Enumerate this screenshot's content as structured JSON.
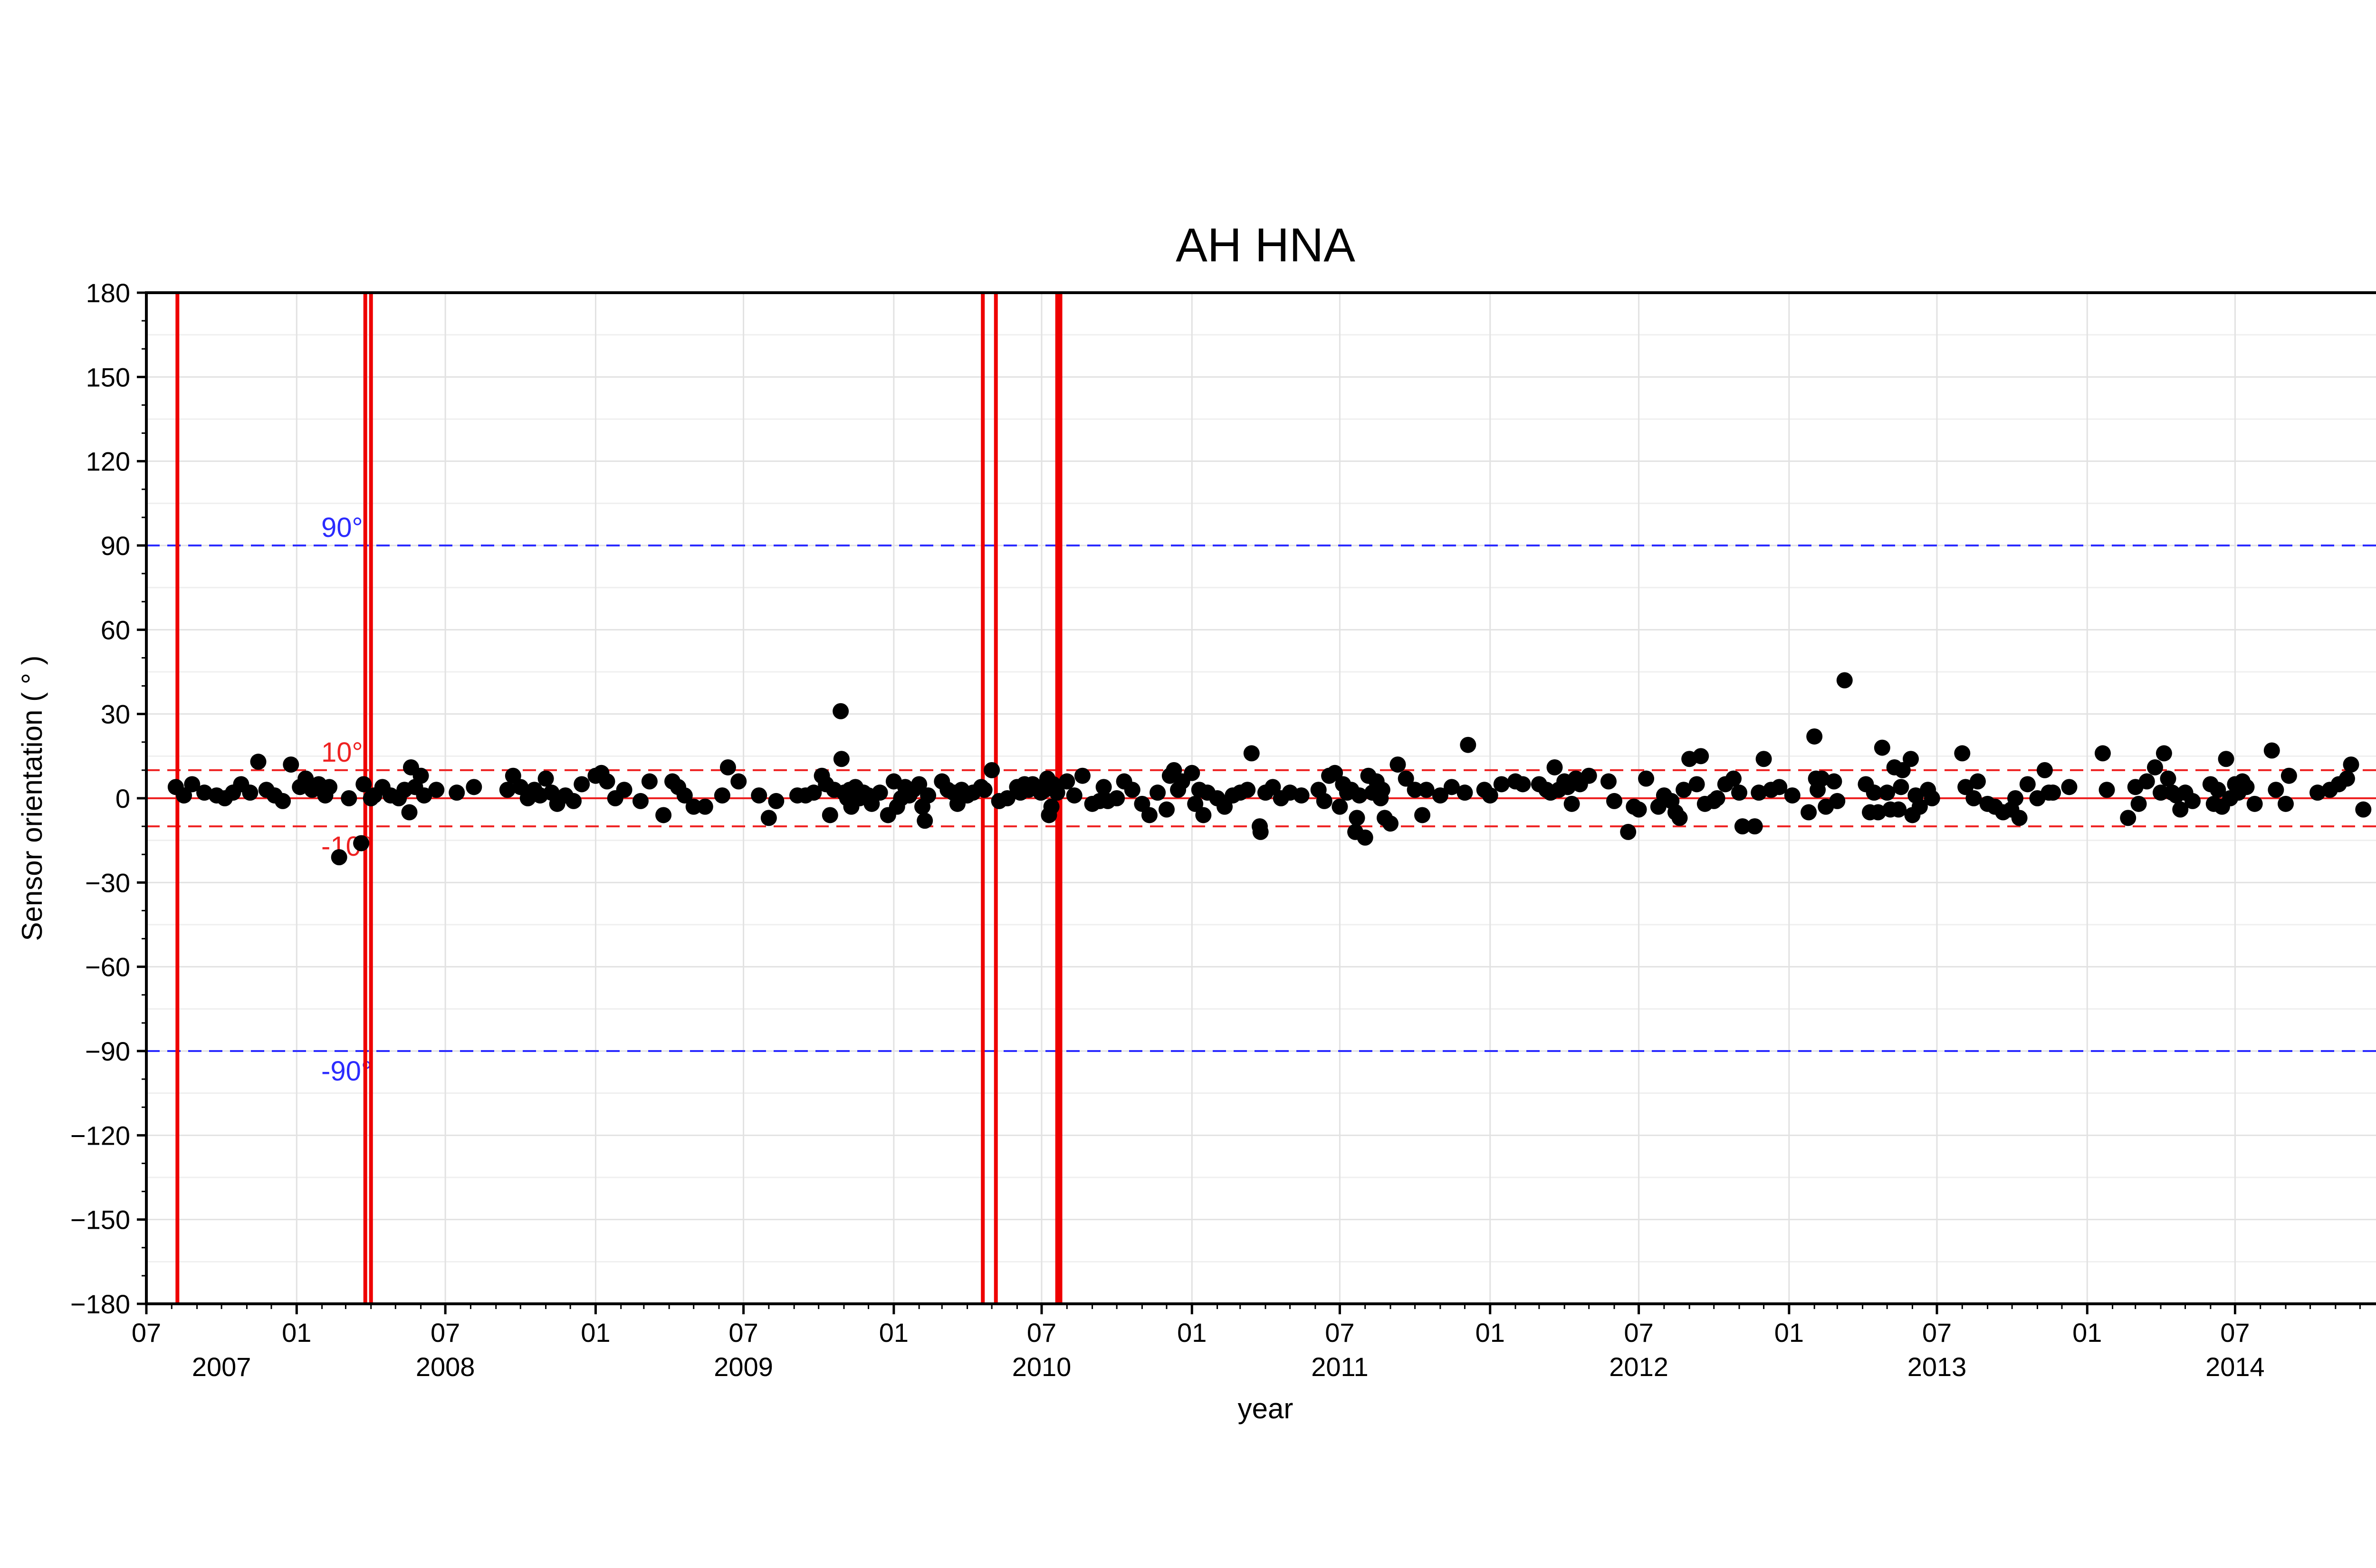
{
  "chart_data": {
    "type": "scatter",
    "title": "AH HNA",
    "xlabel": "year",
    "ylabel": "Sensor orientation ( ° )",
    "ylim": [
      -180,
      180
    ],
    "yticks": [
      180,
      150,
      120,
      90,
      60,
      30,
      0,
      -30,
      -60,
      -90,
      -120,
      -150,
      -180
    ],
    "ytick_labels": [
      "180",
      "150",
      "120",
      "90",
      "60",
      "30",
      "0",
      "−30",
      "−60",
      "−90",
      "−120",
      "−150",
      "−180"
    ],
    "xlim": [
      "2007-07-01",
      "2014-12-31"
    ],
    "xticks": [
      {
        "date": "2007-07-01",
        "label": "07"
      },
      {
        "date": "2008-01-01",
        "label": "01"
      },
      {
        "date": "2008-07-01",
        "label": "07"
      },
      {
        "date": "2009-01-01",
        "label": "01"
      },
      {
        "date": "2009-07-01",
        "label": "07"
      },
      {
        "date": "2010-01-01",
        "label": "01"
      },
      {
        "date": "2010-07-01",
        "label": "07"
      },
      {
        "date": "2011-01-01",
        "label": "01"
      },
      {
        "date": "2011-07-01",
        "label": "07"
      },
      {
        "date": "2012-01-01",
        "label": "01"
      },
      {
        "date": "2012-07-01",
        "label": "07"
      },
      {
        "date": "2013-01-01",
        "label": "01"
      },
      {
        "date": "2013-07-01",
        "label": "07"
      },
      {
        "date": "2014-01-01",
        "label": "01"
      },
      {
        "date": "2014-07-01",
        "label": "07"
      }
    ],
    "year_labels": [
      {
        "date": "2007-10-01",
        "label": "2007"
      },
      {
        "date": "2008-07-01",
        "label": "2008"
      },
      {
        "date": "2009-07-01",
        "label": "2009"
      },
      {
        "date": "2010-07-01",
        "label": "2010"
      },
      {
        "date": "2011-07-01",
        "label": "2011"
      },
      {
        "date": "2012-07-01",
        "label": "2012"
      },
      {
        "date": "2013-07-01",
        "label": "2013"
      },
      {
        "date": "2014-07-01",
        "label": "2014"
      }
    ],
    "grid": true,
    "reference_lines": [
      {
        "y": 90,
        "label": "90°",
        "color": "#2b2bff",
        "style": "dashed"
      },
      {
        "y": -90,
        "label": "-90°",
        "color": "#2b2bff",
        "style": "dashed"
      },
      {
        "y": 10,
        "label": "10°",
        "color": "#ee2222",
        "style": "dashed"
      },
      {
        "y": -10,
        "label": "-10°",
        "color": "#ee2222",
        "style": "dashed"
      },
      {
        "y": 0,
        "label": "",
        "color": "#ee2222",
        "style": "solid"
      }
    ],
    "vertical_lines": {
      "color": "#ee0000",
      "dates": [
        "2007-08-08",
        "2008-03-25",
        "2008-04-01",
        "2010-04-20",
        "2010-05-06",
        "2010-07-20",
        "2010-07-24"
      ]
    },
    "point_color": "#000000",
    "points": [
      [
        "2007-08-06",
        4
      ],
      [
        "2007-08-16",
        1
      ],
      [
        "2007-08-26",
        5
      ],
      [
        "2007-09-10",
        2
      ],
      [
        "2007-09-25",
        1
      ],
      [
        "2007-10-05",
        0
      ],
      [
        "2007-10-15",
        2
      ],
      [
        "2007-10-25",
        5
      ],
      [
        "2007-11-05",
        2
      ],
      [
        "2007-11-15",
        13
      ],
      [
        "2007-11-25",
        3
      ],
      [
        "2007-12-05",
        1
      ],
      [
        "2007-12-15",
        -1
      ],
      [
        "2007-12-25",
        12
      ],
      [
        "2008-01-05",
        4
      ],
      [
        "2008-01-12",
        7
      ],
      [
        "2008-01-20",
        3
      ],
      [
        "2008-01-28",
        5
      ],
      [
        "2008-02-05",
        1
      ],
      [
        "2008-02-10",
        4
      ],
      [
        "2008-02-22",
        -21
      ],
      [
        "2008-03-05",
        0
      ],
      [
        "2008-03-20",
        -16
      ],
      [
        "2008-03-23",
        5
      ],
      [
        "2008-04-01",
        0
      ],
      [
        "2008-04-05",
        1
      ],
      [
        "2008-04-15",
        4
      ],
      [
        "2008-04-25",
        1
      ],
      [
        "2008-05-05",
        0
      ],
      [
        "2008-05-12",
        3
      ],
      [
        "2008-05-18",
        -5
      ],
      [
        "2008-05-20",
        11
      ],
      [
        "2008-05-25",
        4
      ],
      [
        "2008-06-01",
        8
      ],
      [
        "2008-06-05",
        1
      ],
      [
        "2008-06-20",
        3
      ],
      [
        "2008-07-15",
        2
      ],
      [
        "2008-08-05",
        4
      ],
      [
        "2008-09-15",
        3
      ],
      [
        "2008-09-22",
        8
      ],
      [
        "2008-10-01",
        4
      ],
      [
        "2008-10-10",
        0
      ],
      [
        "2008-10-18",
        3
      ],
      [
        "2008-10-25",
        1
      ],
      [
        "2008-11-01",
        7
      ],
      [
        "2008-11-08",
        2
      ],
      [
        "2008-11-15",
        -2
      ],
      [
        "2008-11-25",
        1
      ],
      [
        "2008-12-05",
        -1
      ],
      [
        "2008-12-15",
        5
      ],
      [
        "2009-01-01",
        8
      ],
      [
        "2009-01-08",
        9
      ],
      [
        "2009-01-15",
        6
      ],
      [
        "2009-01-25",
        0
      ],
      [
        "2009-02-05",
        3
      ],
      [
        "2009-02-25",
        -1
      ],
      [
        "2009-03-08",
        6
      ],
      [
        "2009-03-25",
        -6
      ],
      [
        "2009-04-05",
        6
      ],
      [
        "2009-04-12",
        4
      ],
      [
        "2009-04-20",
        1
      ],
      [
        "2009-05-01",
        -3
      ],
      [
        "2009-05-15",
        -3
      ],
      [
        "2009-06-05",
        1
      ],
      [
        "2009-06-12",
        11
      ],
      [
        "2009-06-25",
        6
      ],
      [
        "2009-07-20",
        1
      ],
      [
        "2009-08-01",
        -7
      ],
      [
        "2009-08-10",
        -1
      ],
      [
        "2009-09-05",
        1
      ],
      [
        "2009-09-15",
        1
      ],
      [
        "2009-09-25",
        2
      ],
      [
        "2009-10-05",
        8
      ],
      [
        "2009-10-10",
        5
      ],
      [
        "2009-10-15",
        -6
      ],
      [
        "2009-10-20",
        3
      ],
      [
        "2009-10-28",
        31
      ],
      [
        "2009-10-29",
        14
      ],
      [
        "2009-11-01",
        2
      ],
      [
        "2009-11-05",
        0
      ],
      [
        "2009-11-08",
        3
      ],
      [
        "2009-11-10",
        -3
      ],
      [
        "2009-11-15",
        4
      ],
      [
        "2009-11-20",
        0
      ],
      [
        "2009-11-25",
        2
      ],
      [
        "2009-12-01",
        1
      ],
      [
        "2009-12-05",
        -2
      ],
      [
        "2009-12-15",
        2
      ],
      [
        "2009-12-25",
        -6
      ],
      [
        "2010-01-01",
        6
      ],
      [
        "2010-01-05",
        -3
      ],
      [
        "2010-01-10",
        0
      ],
      [
        "2010-01-15",
        4
      ],
      [
        "2010-01-20",
        1
      ],
      [
        "2010-01-25",
        3
      ],
      [
        "2010-02-01",
        5
      ],
      [
        "2010-02-05",
        -3
      ],
      [
        "2010-02-08",
        -8
      ],
      [
        "2010-02-12",
        1
      ],
      [
        "2010-03-01",
        6
      ],
      [
        "2010-03-08",
        3
      ],
      [
        "2010-03-15",
        2
      ],
      [
        "2010-03-20",
        -2
      ],
      [
        "2010-03-25",
        3
      ],
      [
        "2010-04-01",
        1
      ],
      [
        "2010-04-08",
        2
      ],
      [
        "2010-04-18",
        4
      ],
      [
        "2010-04-22",
        3
      ],
      [
        "2010-05-01",
        10
      ],
      [
        "2010-05-10",
        -1
      ],
      [
        "2010-05-20",
        0
      ],
      [
        "2010-06-01",
        4
      ],
      [
        "2010-06-05",
        2
      ],
      [
        "2010-06-10",
        5
      ],
      [
        "2010-06-15",
        3
      ],
      [
        "2010-06-20",
        5
      ],
      [
        "2010-06-25",
        4
      ],
      [
        "2010-06-30",
        2
      ],
      [
        "2010-07-05",
        3
      ],
      [
        "2010-07-08",
        7
      ],
      [
        "2010-07-10",
        -6
      ],
      [
        "2010-07-13",
        -3
      ],
      [
        "2010-07-15",
        5
      ],
      [
        "2010-07-20",
        2
      ],
      [
        "2010-08-01",
        6
      ],
      [
        "2010-08-10",
        1
      ],
      [
        "2010-08-20",
        8
      ],
      [
        "2010-09-01",
        -2
      ],
      [
        "2010-09-10",
        -1
      ],
      [
        "2010-09-15",
        4
      ],
      [
        "2010-09-20",
        -1
      ],
      [
        "2010-10-01",
        0
      ],
      [
        "2010-10-10",
        6
      ],
      [
        "2010-10-20",
        3
      ],
      [
        "2010-11-01",
        -2
      ],
      [
        "2010-11-10",
        -6
      ],
      [
        "2010-11-20",
        2
      ],
      [
        "2010-12-01",
        -4
      ],
      [
        "2010-12-05",
        8
      ],
      [
        "2010-12-10",
        10
      ],
      [
        "2010-12-15",
        3
      ],
      [
        "2010-12-20",
        6
      ],
      [
        "2011-01-01",
        9
      ],
      [
        "2011-01-05",
        -2
      ],
      [
        "2011-01-10",
        3
      ],
      [
        "2011-01-15",
        -6
      ],
      [
        "2011-01-20",
        2
      ],
      [
        "2011-02-01",
        0
      ],
      [
        "2011-02-10",
        -3
      ],
      [
        "2011-02-20",
        1
      ],
      [
        "2011-03-01",
        2
      ],
      [
        "2011-03-10",
        3
      ],
      [
        "2011-03-15",
        16
      ],
      [
        "2011-03-25",
        -10
      ],
      [
        "2011-03-26",
        -12
      ],
      [
        "2011-04-01",
        2
      ],
      [
        "2011-04-10",
        4
      ],
      [
        "2011-04-20",
        0
      ],
      [
        "2011-05-01",
        2
      ],
      [
        "2011-05-15",
        1
      ],
      [
        "2011-06-05",
        3
      ],
      [
        "2011-06-12",
        -1
      ],
      [
        "2011-06-18",
        8
      ],
      [
        "2011-06-25",
        9
      ],
      [
        "2011-07-01",
        -3
      ],
      [
        "2011-07-05",
        5
      ],
      [
        "2011-07-10",
        2
      ],
      [
        "2011-07-15",
        3
      ],
      [
        "2011-07-20",
        -12
      ],
      [
        "2011-07-22",
        -7
      ],
      [
        "2011-07-25",
        1
      ],
      [
        "2011-08-01",
        -14
      ],
      [
        "2011-08-05",
        8
      ],
      [
        "2011-08-10",
        2
      ],
      [
        "2011-08-15",
        6
      ],
      [
        "2011-08-20",
        0
      ],
      [
        "2011-08-22",
        3
      ],
      [
        "2011-08-25",
        -7
      ],
      [
        "2011-09-01",
        -9
      ],
      [
        "2011-09-10",
        12
      ],
      [
        "2011-09-20",
        7
      ],
      [
        "2011-10-01",
        3
      ],
      [
        "2011-10-10",
        -6
      ],
      [
        "2011-10-15",
        3
      ],
      [
        "2011-11-01",
        1
      ],
      [
        "2011-11-15",
        4
      ],
      [
        "2011-12-01",
        2
      ],
      [
        "2011-12-05",
        19
      ],
      [
        "2011-12-25",
        3
      ],
      [
        "2012-01-01",
        1
      ],
      [
        "2012-01-15",
        5
      ],
      [
        "2012-02-01",
        6
      ],
      [
        "2012-02-10",
        5
      ],
      [
        "2012-03-01",
        5
      ],
      [
        "2012-03-10",
        3
      ],
      [
        "2012-03-15",
        2
      ],
      [
        "2012-03-20",
        11
      ],
      [
        "2012-03-25",
        3
      ],
      [
        "2012-04-01",
        6
      ],
      [
        "2012-04-05",
        4
      ],
      [
        "2012-04-10",
        -2
      ],
      [
        "2012-04-15",
        7
      ],
      [
        "2012-04-20",
        5
      ],
      [
        "2012-05-01",
        8
      ],
      [
        "2012-05-25",
        6
      ],
      [
        "2012-06-01",
        -1
      ],
      [
        "2012-06-18",
        -12
      ],
      [
        "2012-06-25",
        -3
      ],
      [
        "2012-07-01",
        -4
      ],
      [
        "2012-07-10",
        7
      ],
      [
        "2012-07-25",
        -3
      ],
      [
        "2012-08-01",
        1
      ],
      [
        "2012-08-10",
        -1
      ],
      [
        "2012-08-15",
        -5
      ],
      [
        "2012-08-20",
        -7
      ],
      [
        "2012-08-25",
        3
      ],
      [
        "2012-09-01",
        14
      ],
      [
        "2012-09-10",
        5
      ],
      [
        "2012-09-15",
        15
      ],
      [
        "2012-09-20",
        -2
      ],
      [
        "2012-10-01",
        -1
      ],
      [
        "2012-10-05",
        0
      ],
      [
        "2012-10-15",
        5
      ],
      [
        "2012-10-25",
        7
      ],
      [
        "2012-11-01",
        2
      ],
      [
        "2012-11-05",
        -10
      ],
      [
        "2012-11-20",
        -10
      ],
      [
        "2012-11-25",
        2
      ],
      [
        "2012-12-01",
        14
      ],
      [
        "2012-12-10",
        3
      ],
      [
        "2012-12-20",
        4
      ],
      [
        "2013-01-05",
        1
      ],
      [
        "2013-01-25",
        -5
      ],
      [
        "2013-02-01",
        22
      ],
      [
        "2013-02-03",
        7
      ],
      [
        "2013-02-05",
        3
      ],
      [
        "2013-02-10",
        7
      ],
      [
        "2013-02-15",
        -3
      ],
      [
        "2013-02-25",
        6
      ],
      [
        "2013-03-01",
        -1
      ],
      [
        "2013-03-10",
        42
      ],
      [
        "2013-04-05",
        5
      ],
      [
        "2013-04-10",
        -5
      ],
      [
        "2013-04-15",
        2
      ],
      [
        "2013-04-20",
        -5
      ],
      [
        "2013-04-25",
        18
      ],
      [
        "2013-05-01",
        2
      ],
      [
        "2013-05-05",
        -4
      ],
      [
        "2013-05-10",
        11
      ],
      [
        "2013-05-15",
        -4
      ],
      [
        "2013-05-18",
        4
      ],
      [
        "2013-05-20",
        10
      ],
      [
        "2013-05-30",
        14
      ],
      [
        "2013-06-01",
        -6
      ],
      [
        "2013-06-05",
        1
      ],
      [
        "2013-06-10",
        -3
      ],
      [
        "2013-06-20",
        3
      ],
      [
        "2013-06-25",
        0
      ],
      [
        "2013-08-01",
        16
      ],
      [
        "2013-08-05",
        4
      ],
      [
        "2013-08-15",
        0
      ],
      [
        "2013-08-20",
        6
      ],
      [
        "2013-09-01",
        -2
      ],
      [
        "2013-09-10",
        -3
      ],
      [
        "2013-09-20",
        -5
      ],
      [
        "2013-09-30",
        -4
      ],
      [
        "2013-10-05",
        0
      ],
      [
        "2013-10-10",
        -7
      ],
      [
        "2013-10-20",
        5
      ],
      [
        "2013-11-01",
        0
      ],
      [
        "2013-11-10",
        10
      ],
      [
        "2013-11-15",
        2
      ],
      [
        "2013-11-20",
        2
      ],
      [
        "2013-12-10",
        4
      ],
      [
        "2014-01-20",
        16
      ],
      [
        "2014-01-25",
        3
      ],
      [
        "2014-02-20",
        -7
      ],
      [
        "2014-03-01",
        4
      ],
      [
        "2014-03-05",
        -2
      ],
      [
        "2014-03-15",
        6
      ],
      [
        "2014-03-25",
        11
      ],
      [
        "2014-04-01",
        2
      ],
      [
        "2014-04-05",
        16
      ],
      [
        "2014-04-10",
        7
      ],
      [
        "2014-04-15",
        2
      ],
      [
        "2014-04-20",
        1
      ],
      [
        "2014-04-25",
        -4
      ],
      [
        "2014-05-01",
        2
      ],
      [
        "2014-05-10",
        -1
      ],
      [
        "2014-06-01",
        5
      ],
      [
        "2014-06-05",
        -2
      ],
      [
        "2014-06-10",
        3
      ],
      [
        "2014-06-15",
        -3
      ],
      [
        "2014-06-20",
        14
      ],
      [
        "2014-06-25",
        0
      ],
      [
        "2014-07-01",
        5
      ],
      [
        "2014-07-05",
        2
      ],
      [
        "2014-07-10",
        6
      ],
      [
        "2014-07-15",
        4
      ],
      [
        "2014-07-25",
        -2
      ],
      [
        "2014-08-15",
        17
      ],
      [
        "2014-08-20",
        3
      ],
      [
        "2014-09-01",
        -2
      ],
      [
        "2014-09-05",
        8
      ],
      [
        "2014-10-10",
        2
      ],
      [
        "2014-10-25",
        3
      ],
      [
        "2014-11-05",
        5
      ],
      [
        "2014-11-15",
        7
      ],
      [
        "2014-11-20",
        12
      ],
      [
        "2014-12-05",
        -4
      ]
    ]
  }
}
